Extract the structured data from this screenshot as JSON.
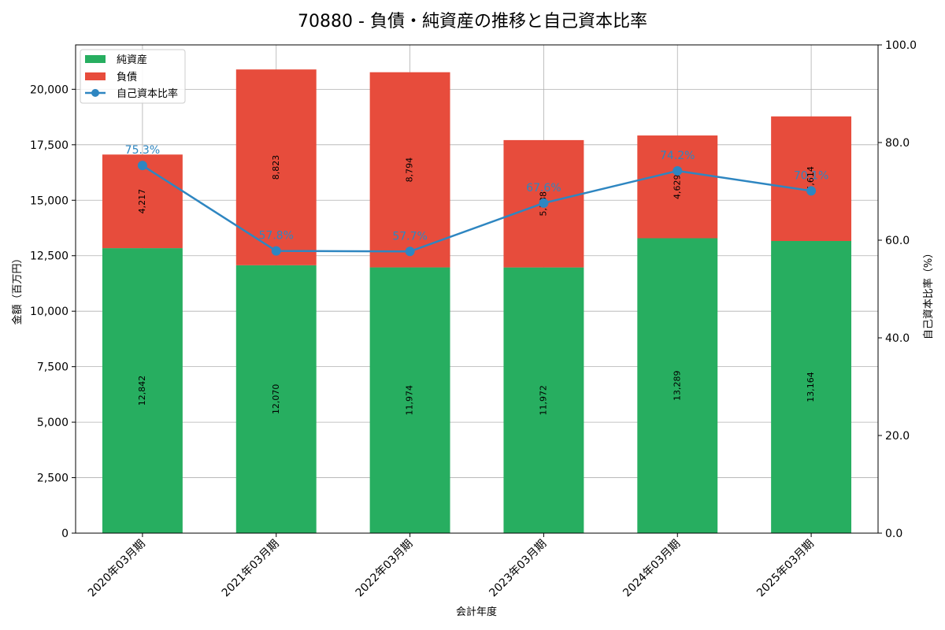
{
  "chart_data": {
    "type": "bar",
    "stacked": true,
    "title": "70880 - 負債・純資産の推移と自己資本比率",
    "xlabel": "会計年度",
    "ylabel": "金額（百万円）",
    "y2label": "自己資本比率（%）",
    "categories": [
      "2020年03月期",
      "2021年03月期",
      "2022年03月期",
      "2023年03月期",
      "2024年03月期",
      "2025年03月期"
    ],
    "series": [
      {
        "name": "純資産",
        "color": "#27ae60",
        "values": [
          12842,
          12070,
          11974,
          11972,
          13289,
          13164
        ],
        "labels": [
          "12,842",
          "12,070",
          "11,974",
          "11,972",
          "13,289",
          "13,164"
        ]
      },
      {
        "name": "負債",
        "color": "#e74c3c",
        "values": [
          4217,
          8823,
          8794,
          5738,
          4629,
          5614
        ],
        "labels": [
          "4,217",
          "8,823",
          "8,794",
          "5,738",
          "4,629",
          "5,614"
        ]
      }
    ],
    "line": {
      "name": "自己資本比率",
      "color": "#2e86c1",
      "values": [
        75.3,
        57.8,
        57.7,
        67.6,
        74.2,
        70.1
      ],
      "labels": [
        "75.3%",
        "57.8%",
        "57.7%",
        "67.6%",
        "74.2%",
        "70.1%"
      ]
    },
    "ylim": [
      0,
      22000
    ],
    "y2lim": [
      0,
      100
    ],
    "yticks": [
      0,
      2500,
      5000,
      7500,
      10000,
      12500,
      15000,
      17500,
      20000
    ],
    "ytick_labels": [
      "0",
      "2,500",
      "5,000",
      "7,500",
      "10,000",
      "12,500",
      "15,000",
      "17,500",
      "20,000"
    ],
    "y2ticks": [
      0,
      20,
      40,
      60,
      80,
      100
    ],
    "y2tick_labels": [
      "0.0",
      "20.0",
      "40.0",
      "60.0",
      "80.0",
      "100.0"
    ],
    "grid": true,
    "legend_position": "top-left"
  }
}
